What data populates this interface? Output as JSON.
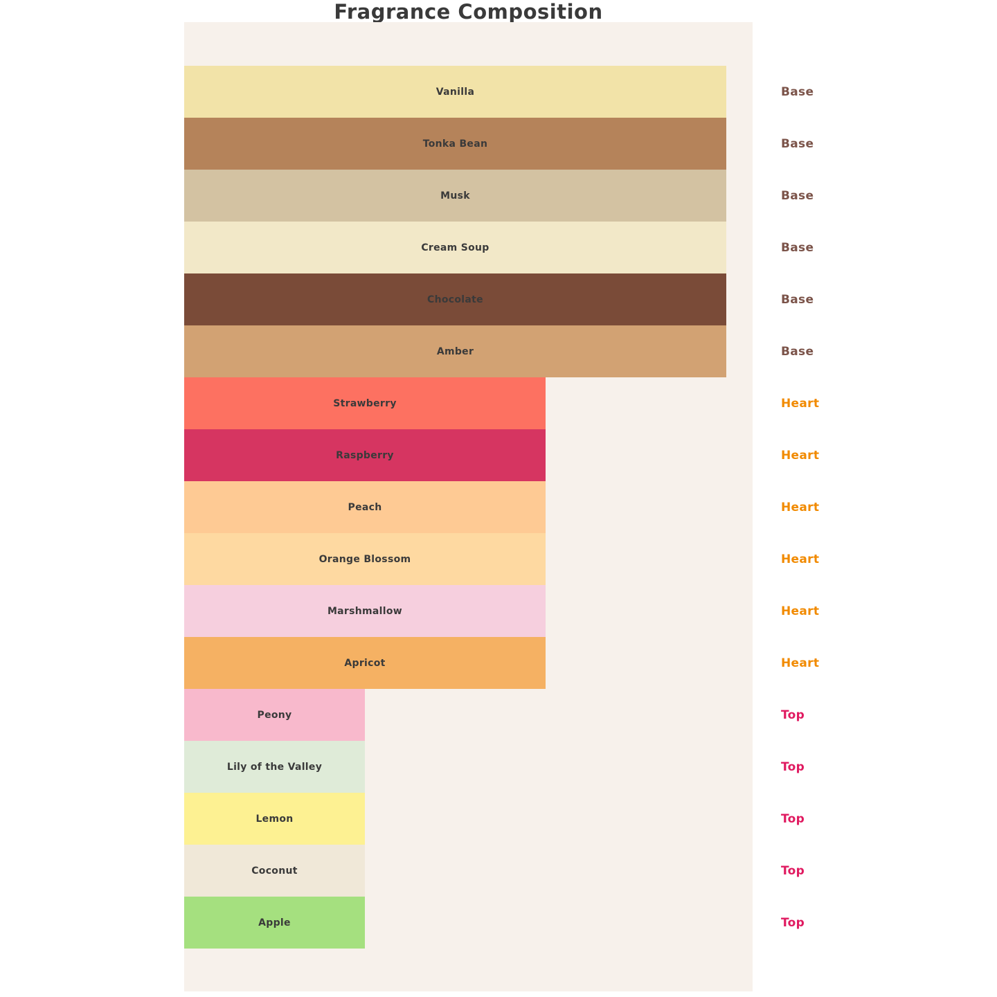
{
  "title": "Fragrance Composition",
  "panel_background": "#f7f1eb",
  "note_label_color": "#3a3a3a",
  "group_colors": {
    "Base": "#7b5349",
    "Heart": "#f18a00",
    "Top": "#e01a60"
  },
  "bars": [
    {
      "label": "Vanilla",
      "group": "Base",
      "value": 3,
      "color": "#f2e3a8"
    },
    {
      "label": "Tonka Bean",
      "group": "Base",
      "value": 3,
      "color": "#b5835a"
    },
    {
      "label": "Musk",
      "group": "Base",
      "value": 3,
      "color": "#d3c2a2"
    },
    {
      "label": "Cream Soup",
      "group": "Base",
      "value": 3,
      "color": "#f2e8c8"
    },
    {
      "label": "Chocolate",
      "group": "Base",
      "value": 3,
      "color": "#7a4b38"
    },
    {
      "label": "Amber",
      "group": "Base",
      "value": 3,
      "color": "#d2a273"
    },
    {
      "label": "Strawberry",
      "group": "Heart",
      "value": 2,
      "color": "#fd7161"
    },
    {
      "label": "Raspberry",
      "group": "Heart",
      "value": 2,
      "color": "#d63561"
    },
    {
      "label": "Peach",
      "group": "Heart",
      "value": 2,
      "color": "#feca94"
    },
    {
      "label": "Orange Blossom",
      "group": "Heart",
      "value": 2,
      "color": "#fed9a1"
    },
    {
      "label": "Marshmallow",
      "group": "Heart",
      "value": 2,
      "color": "#f6cfde"
    },
    {
      "label": "Apricot",
      "group": "Heart",
      "value": 2,
      "color": "#f5b163"
    },
    {
      "label": "Peony",
      "group": "Top",
      "value": 1,
      "color": "#f8b9cc"
    },
    {
      "label": "Lily of the Valley",
      "group": "Top",
      "value": 1,
      "color": "#dfebd8"
    },
    {
      "label": "Lemon",
      "group": "Top",
      "value": 1,
      "color": "#fdf192"
    },
    {
      "label": "Coconut",
      "group": "Top",
      "value": 1,
      "color": "#f0e8d8"
    },
    {
      "label": "Apple",
      "group": "Top",
      "value": 1,
      "color": "#a5e07f"
    }
  ],
  "chart_data": {
    "type": "bar",
    "orientation": "horizontal",
    "title": "Fragrance Composition",
    "categories": [
      "Vanilla",
      "Tonka Bean",
      "Musk",
      "Cream Soup",
      "Chocolate",
      "Amber",
      "Strawberry",
      "Raspberry",
      "Peach",
      "Orange Blossom",
      "Marshmallow",
      "Apricot",
      "Peony",
      "Lily of the Valley",
      "Lemon",
      "Coconut",
      "Apple"
    ],
    "values": [
      3,
      3,
      3,
      3,
      3,
      3,
      2,
      2,
      2,
      2,
      2,
      2,
      1,
      1,
      1,
      1,
      1
    ],
    "groups": [
      "Base",
      "Base",
      "Base",
      "Base",
      "Base",
      "Base",
      "Heart",
      "Heart",
      "Heart",
      "Heart",
      "Heart",
      "Heart",
      "Top",
      "Top",
      "Top",
      "Top",
      "Top"
    ],
    "bar_colors": [
      "#f2e3a8",
      "#b5835a",
      "#d3c2a2",
      "#f2e8c8",
      "#7a4b38",
      "#d2a273",
      "#fd7161",
      "#d63561",
      "#feca94",
      "#fed9a1",
      "#f6cfde",
      "#f5b163",
      "#f8b9cc",
      "#dfebd8",
      "#fdf192",
      "#f0e8d8",
      "#a5e07f"
    ],
    "xlabel": "",
    "ylabel": "",
    "xlim": [
      0,
      3.15
    ],
    "grid": false,
    "axis_ticks_visible": false,
    "legend_position": "right-side per-bar group labels",
    "group_label_colors": {
      "Base": "#7b5349",
      "Heart": "#f18a00",
      "Top": "#e01a60"
    }
  }
}
